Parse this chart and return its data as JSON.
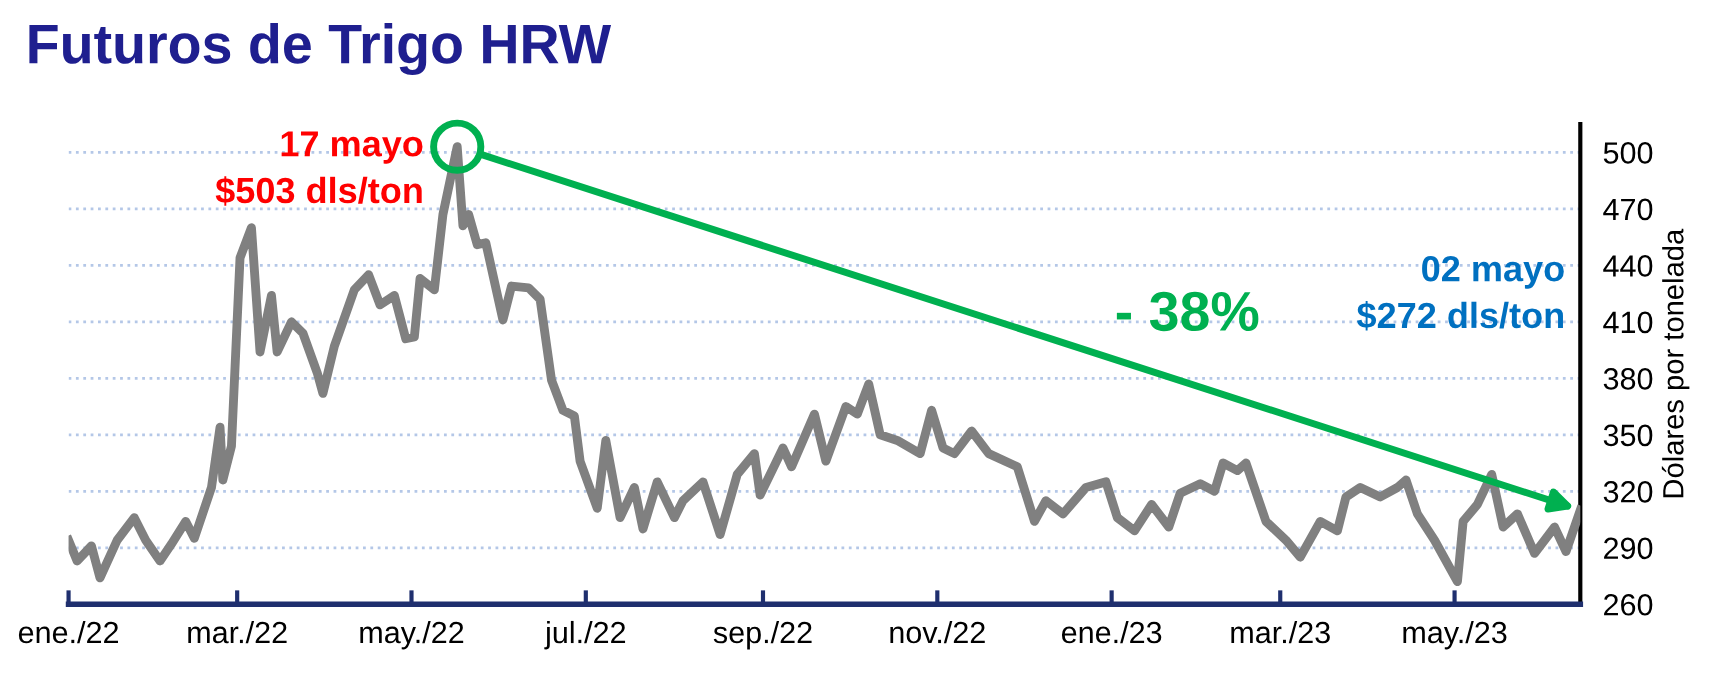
{
  "chart_data": {
    "type": "line",
    "title": "Futuros de Trigo HRW",
    "ylabel": "Dólares por tonelada",
    "x": [
      "2022-01-01",
      "2022-01-04",
      "2022-01-09",
      "2022-01-12",
      "2022-01-18",
      "2022-01-24",
      "2022-01-28",
      "2022-02-02",
      "2022-02-06",
      "2022-02-11",
      "2022-02-14",
      "2022-02-20",
      "2022-02-23",
      "2022-02-24",
      "2022-02-27",
      "2022-03-02",
      "2022-03-06",
      "2022-03-09",
      "2022-03-13",
      "2022-03-15",
      "2022-03-20",
      "2022-03-24",
      "2022-03-29",
      "2022-03-31",
      "2022-04-04",
      "2022-04-11",
      "2022-04-16",
      "2022-04-20",
      "2022-04-25",
      "2022-04-29",
      "2022-05-02",
      "2022-05-04",
      "2022-05-09",
      "2022-05-12",
      "2022-05-17",
      "2022-05-19",
      "2022-05-21",
      "2022-05-24",
      "2022-05-27",
      "2022-06-02",
      "2022-06-05",
      "2022-06-11",
      "2022-06-15",
      "2022-06-19",
      "2022-06-23",
      "2022-06-27",
      "2022-06-29",
      "2022-07-05",
      "2022-07-08",
      "2022-07-13",
      "2022-07-18",
      "2022-07-21",
      "2022-07-26",
      "2022-08-01",
      "2022-08-04",
      "2022-08-11",
      "2022-08-17",
      "2022-08-23",
      "2022-08-29",
      "2022-08-31",
      "2022-09-08",
      "2022-09-11",
      "2022-09-19",
      "2022-09-23",
      "2022-09-30",
      "2022-10-04",
      "2022-10-08",
      "2022-10-12",
      "2022-10-18",
      "2022-10-26",
      "2022-10-30",
      "2022-11-03",
      "2022-11-07",
      "2022-11-13",
      "2022-11-19",
      "2022-11-29",
      "2022-12-05",
      "2022-12-09",
      "2022-12-15",
      "2022-12-23",
      "2022-12-30",
      "2023-01-03",
      "2023-01-09",
      "2023-01-15",
      "2023-01-21",
      "2023-01-25",
      "2023-02-01",
      "2023-02-06",
      "2023-02-09",
      "2023-02-14",
      "2023-02-17",
      "2023-02-24",
      "2023-03-03",
      "2023-03-08",
      "2023-03-15",
      "2023-03-21",
      "2023-03-24",
      "2023-03-29",
      "2023-04-05",
      "2023-04-11",
      "2023-04-14",
      "2023-04-18",
      "2023-04-24",
      "2023-05-02",
      "2023-05-04",
      "2023-05-09",
      "2023-05-14",
      "2023-05-18",
      "2023-05-23",
      "2023-05-29",
      "2023-06-05",
      "2023-06-09",
      "2023-06-14"
    ],
    "series": [
      {
        "color": "#808080",
        "values": [
          294,
          283,
          291,
          274,
          294,
          306,
          294,
          283,
          292,
          304,
          295,
          322,
          354,
          326,
          344,
          444,
          460,
          394,
          424,
          394,
          410,
          404,
          383,
          372,
          397,
          427,
          435,
          419,
          424,
          401,
          402,
          433,
          427,
          467,
          503,
          461,
          467,
          451,
          452,
          411,
          429,
          428,
          422,
          379,
          363,
          360,
          336,
          311,
          347,
          306,
          322,
          300,
          325,
          306,
          315,
          325,
          297,
          329,
          340,
          318,
          343,
          333,
          361,
          336,
          365,
          361,
          377,
          350,
          347,
          340,
          363,
          343,
          340,
          352,
          340,
          333,
          304,
          315,
          308,
          322,
          325,
          306,
          299,
          313,
          301,
          319,
          324,
          320,
          335,
          331,
          335,
          304,
          294,
          285,
          304,
          299,
          317,
          322,
          317,
          322,
          326,
          308,
          294,
          272,
          304,
          313,
          329,
          301,
          308,
          287,
          301,
          288,
          310
        ]
      }
    ],
    "xlim": [
      "2022-01-01",
      "2023-06-14"
    ],
    "xticks": [
      {
        "value": "2022-01-01",
        "label": "ene./22"
      },
      {
        "value": "2022-03-01",
        "label": "mar./22"
      },
      {
        "value": "2022-05-01",
        "label": "may./22"
      },
      {
        "value": "2022-07-01",
        "label": "jul./22"
      },
      {
        "value": "2022-09-01",
        "label": "sep./22"
      },
      {
        "value": "2022-11-01",
        "label": "nov./22"
      },
      {
        "value": "2023-01-01",
        "label": "ene./23"
      },
      {
        "value": "2023-03-01",
        "label": "mar./23"
      },
      {
        "value": "2023-05-01",
        "label": "may./23"
      }
    ],
    "ylim": [
      260,
      515
    ],
    "yticks": [
      260,
      290,
      320,
      350,
      380,
      410,
      440,
      470,
      500
    ],
    "grid": "y",
    "marker": "none",
    "line_style": "solid",
    "legend": false,
    "annotations": [
      {
        "text": "17 mayo\n$503 dls/ton",
        "x": "2022-05-17",
        "y": 503
      },
      "02 mayo\n$272 dls/ton",
      "- 38%"
    ]
  }
}
